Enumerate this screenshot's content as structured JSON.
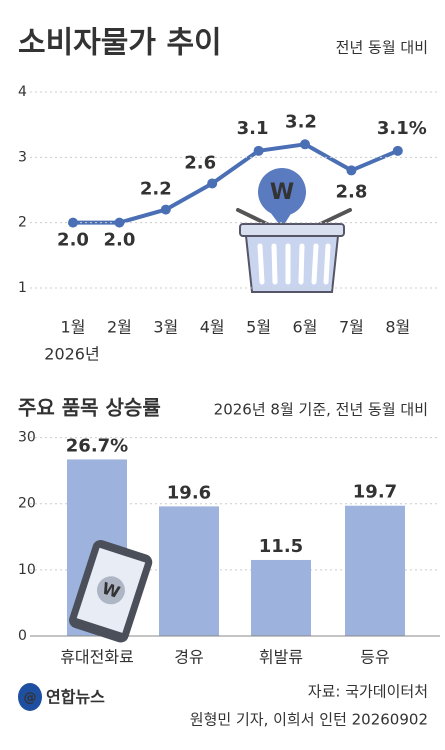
{
  "chart_data": [
    {
      "type": "line",
      "title": "소비자물가 추이",
      "subtitle": "전년 동월 대비",
      "categories": [
        "1월",
        "2월",
        "3월",
        "4월",
        "5월",
        "6월",
        "7월",
        "8월"
      ],
      "annotation": "2026년",
      "values": [
        2.0,
        2.0,
        2.2,
        2.6,
        3.1,
        3.2,
        2.8,
        3.1
      ],
      "value_labels": [
        "2.0",
        "2.0",
        "2.2",
        "2.6",
        "3.1",
        "3.2",
        "2.8",
        "3.1%"
      ],
      "ylim": [
        0.8,
        4.2
      ],
      "yticks": [
        1,
        2,
        3,
        4
      ],
      "grid": true,
      "color": "#4a6fb5"
    },
    {
      "type": "bar",
      "title": "주요 품목 상승률",
      "subtitle": "2026년 8월 기준, 전년 동월 대비",
      "categories": [
        "휴대전화료",
        "경유",
        "휘발류",
        "등유"
      ],
      "values": [
        26.7,
        19.6,
        11.5,
        19.7
      ],
      "value_labels": [
        "26.7%",
        "19.6",
        "11.5",
        "19.7"
      ],
      "ylim": [
        0,
        31
      ],
      "yticks": [
        0,
        10,
        20,
        30
      ],
      "grid": true,
      "color": "#9db2dc"
    }
  ],
  "logo": "연합뉴스",
  "source": "자료: 국가데이터처",
  "credit": "원형민 기자, 이희서 인턴 20260902"
}
